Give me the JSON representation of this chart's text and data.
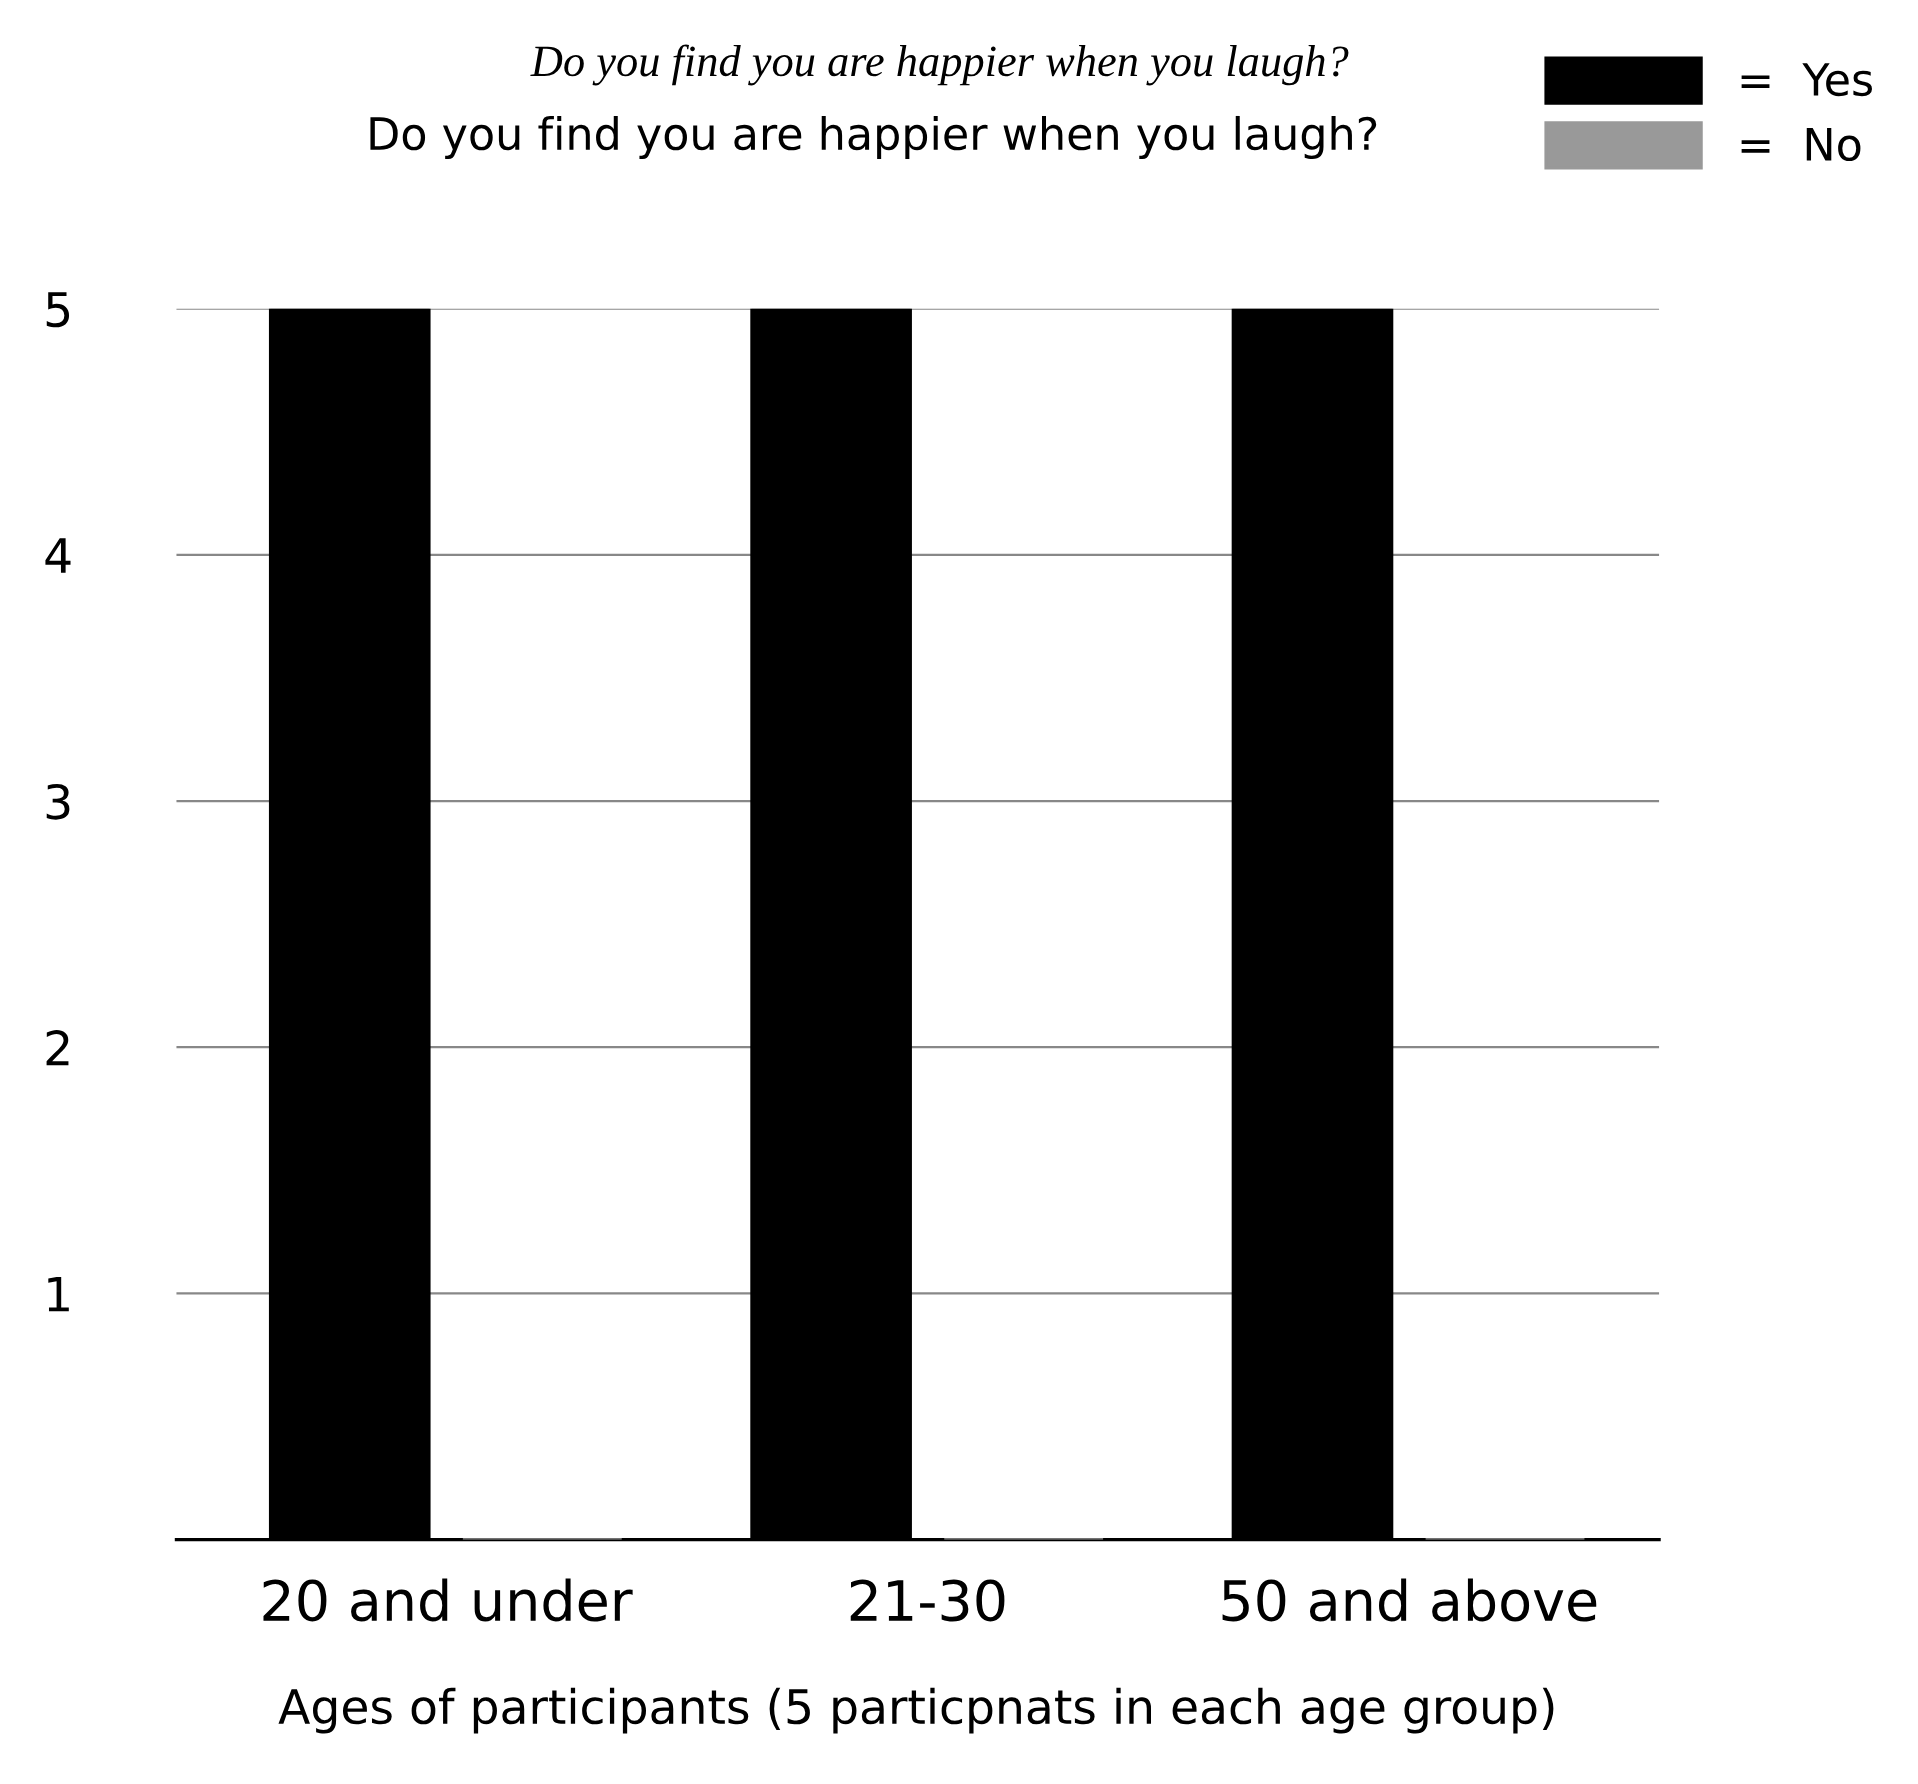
{
  "chart_data": {
    "type": "bar",
    "title": "Do you find you are happier when you laugh?",
    "subtitle": "Do you find you are happier when you laugh?",
    "xlabel": "Ages of participants (5 particpnats in each age group)",
    "categories": [
      "20 and under",
      "21-30",
      "50 and above"
    ],
    "series": [
      {
        "name": "=  Yes",
        "color": "#000000",
        "values": [
          5,
          5,
          5
        ]
      },
      {
        "name": "=  No",
        "color": "#999999",
        "values": [
          0,
          0,
          0
        ]
      }
    ],
    "ylim": [
      0,
      5
    ],
    "yticks": [
      1,
      2,
      3,
      4,
      5
    ],
    "grid": "y",
    "legend": "top right"
  }
}
